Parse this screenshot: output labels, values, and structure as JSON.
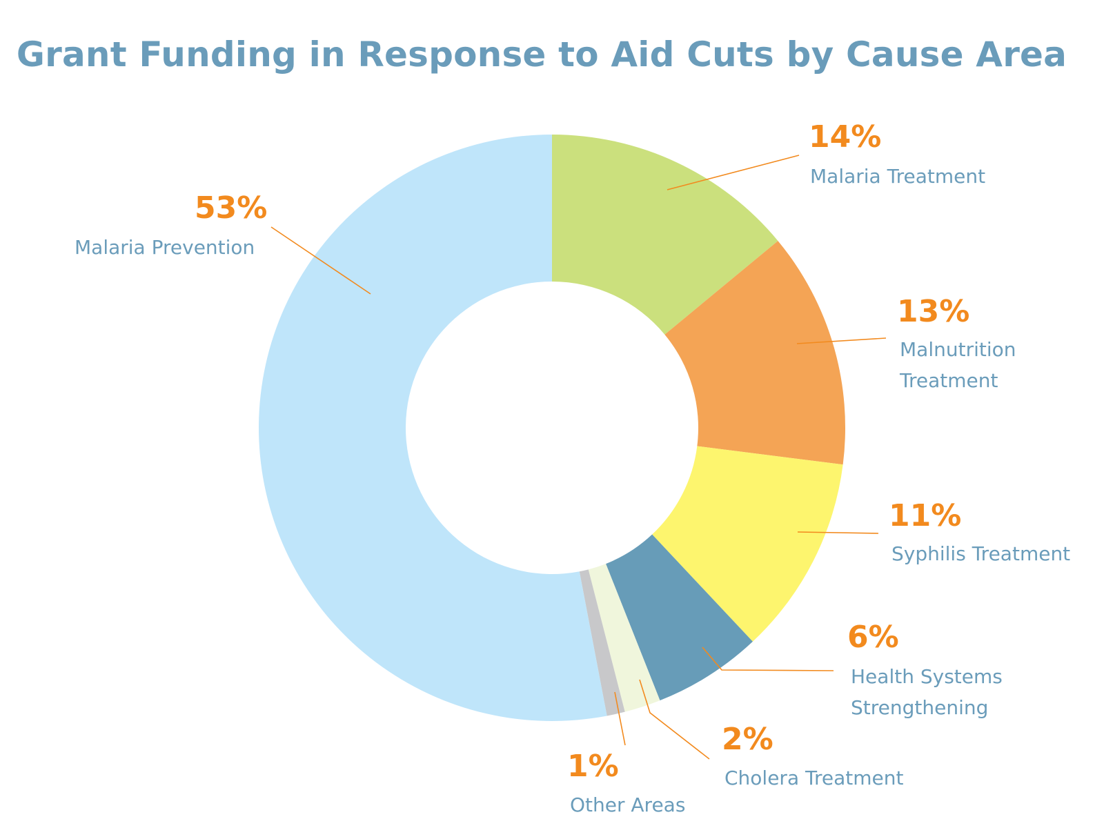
{
  "chart_data": {
    "type": "pie",
    "variant": "donut",
    "title": "Grant Funding in Response to Aid Cuts by Cause Area",
    "unit": "%",
    "slices": [
      {
        "label": "Malaria Treatment",
        "label_lines": [
          "Malaria Treatment"
        ],
        "value": 14,
        "display": "14%",
        "color": "#cbe07d"
      },
      {
        "label": "Malnutrition Treatment",
        "label_lines": [
          "Malnutrition",
          "Treatment"
        ],
        "value": 13,
        "display": "13%",
        "color": "#f4a455"
      },
      {
        "label": "Syphilis Treatment",
        "label_lines": [
          "Syphilis Treatment"
        ],
        "value": 11,
        "display": "11%",
        "color": "#fdf56e"
      },
      {
        "label": "Health Systems Strengthening",
        "label_lines": [
          "Health Systems",
          "Strengthening"
        ],
        "value": 6,
        "display": "6%",
        "color": "#679cb8"
      },
      {
        "label": "Cholera Treatment",
        "label_lines": [
          "Cholera Treatment"
        ],
        "value": 2,
        "display": "2%",
        "color": "#f0f6dc"
      },
      {
        "label": "Other Areas",
        "label_lines": [
          "Other Areas"
        ],
        "value": 1,
        "display": "1%",
        "color": "#c8c8ca"
      },
      {
        "label": "Malaria Prevention",
        "label_lines": [
          "Malaria Prevention"
        ],
        "value": 53,
        "display": "53%",
        "color": "#bfe5fa"
      }
    ],
    "start_angle": "12 o'clock",
    "direction": "clockwise",
    "percent_color": "#f28a1e",
    "label_color": "#6a9cba",
    "leader_color": "#f28a1e"
  }
}
